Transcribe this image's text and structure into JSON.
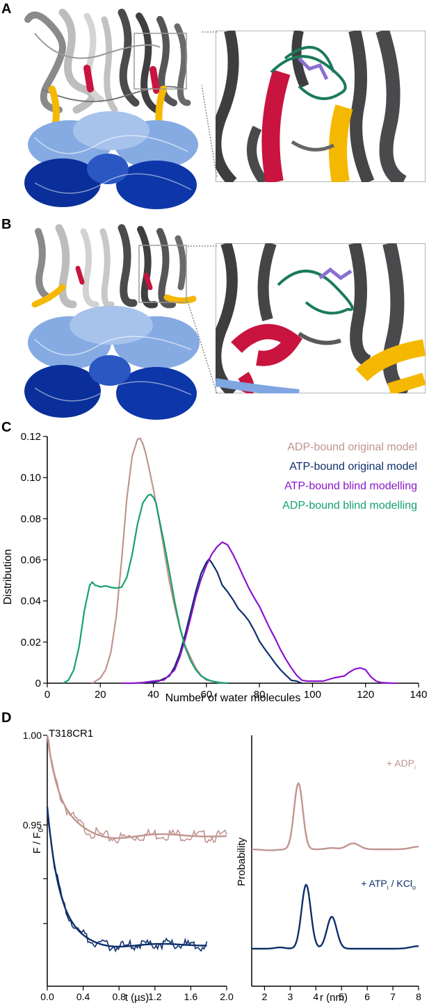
{
  "panels": {
    "a": {
      "letter": "A"
    },
    "b": {
      "letter": "B"
    },
    "c": {
      "letter": "C"
    },
    "d": {
      "letter": "D"
    }
  },
  "colors": {
    "dark_gray": "#4a4a4c",
    "light_gray": "#b8b8b8",
    "red": "#c8143e",
    "yellow": "#f5b800",
    "green": "#1b7a5a",
    "purple": "#8a6fd0",
    "light_blue": "#7fa6e0",
    "dark_blue": "#0a2f9a",
    "adp_rose": "#c0958f",
    "atp_navy": "#0d2f6b",
    "atp_blind_purple": "#8a14c9",
    "adp_blind_green": "#16a06e"
  },
  "chart_data": [
    {
      "type": "line",
      "xlabel": "Number of water molecules",
      "ylabel": "Distribution",
      "xlim": [
        0,
        140
      ],
      "ylim": [
        0,
        0.12
      ],
      "xticks": [
        0,
        20,
        40,
        60,
        80,
        100,
        120,
        140
      ],
      "yticks": [
        0,
        0.02,
        0.04,
        0.06,
        0.08,
        0.1,
        0.12
      ],
      "ytick_labels": [
        "0",
        "0.02",
        "0.04",
        "0.06",
        "0.08",
        "0.10",
        "0.12"
      ],
      "legend_position": "top-right",
      "series": [
        {
          "name": "ADP-bound original model",
          "color": "#c0958f",
          "x": [
            17,
            20,
            22,
            24,
            26,
            28,
            30,
            32,
            34,
            35,
            36,
            37,
            38,
            40,
            42,
            44,
            46,
            48,
            50,
            52,
            54,
            56,
            58,
            60,
            62,
            64,
            66
          ],
          "y": [
            0,
            0.002,
            0.006,
            0.015,
            0.033,
            0.06,
            0.09,
            0.11,
            0.118,
            0.119,
            0.117,
            0.113,
            0.107,
            0.094,
            0.08,
            0.065,
            0.05,
            0.038,
            0.027,
            0.018,
            0.012,
            0.007,
            0.004,
            0.002,
            0.001,
            0.0004,
            0
          ]
        },
        {
          "name": "ATP-bound original model",
          "color": "#0d2f6b",
          "x": [
            38,
            42,
            46,
            48,
            50,
            52,
            54,
            56,
            58,
            60,
            61,
            62,
            64,
            66,
            68,
            70,
            72,
            74,
            76,
            78,
            80,
            82,
            84,
            86,
            88,
            90,
            92,
            94,
            96
          ],
          "y": [
            0,
            0.001,
            0.004,
            0.008,
            0.014,
            0.023,
            0.034,
            0.045,
            0.054,
            0.059,
            0.06,
            0.058,
            0.054,
            0.048,
            0.045,
            0.041,
            0.036,
            0.033,
            0.03,
            0.026,
            0.021,
            0.017,
            0.013,
            0.009,
            0.006,
            0.004,
            0.002,
            0.001,
            0
          ]
        },
        {
          "name": "ATP-bound blind modelling",
          "color": "#8a14c9",
          "x": [
            28,
            32,
            36,
            40,
            44,
            48,
            50,
            52,
            54,
            56,
            58,
            60,
            62,
            64,
            66,
            68,
            70,
            72,
            74,
            76,
            78,
            80,
            82,
            84,
            86,
            88,
            90,
            92,
            94,
            96,
            98,
            100,
            104,
            108,
            110,
            112,
            114,
            116,
            118,
            120,
            122,
            124,
            126,
            130,
            132
          ],
          "y": [
            0,
            0,
            0.0003,
            0.001,
            0.002,
            0.007,
            0.013,
            0.021,
            0.031,
            0.042,
            0.051,
            0.058,
            0.063,
            0.066,
            0.068,
            0.067,
            0.063,
            0.058,
            0.052,
            0.046,
            0.041,
            0.037,
            0.032,
            0.027,
            0.022,
            0.016,
            0.011,
            0.007,
            0.004,
            0.002,
            0.001,
            0.001,
            0.001,
            0.002,
            0.003,
            0.004,
            0.006,
            0.007,
            0.007,
            0.006,
            0.003,
            0.001,
            0.0003,
            0,
            0
          ]
        },
        {
          "name": "ADP-bound blind modelling",
          "color": "#16a06e",
          "x": [
            6,
            8,
            10,
            12,
            14,
            16,
            17,
            18,
            19,
            20,
            22,
            24,
            26,
            28,
            30,
            32,
            34,
            36,
            38,
            39,
            40,
            41,
            42,
            44,
            46,
            48,
            50,
            52,
            54,
            56,
            58,
            60,
            62,
            64,
            66,
            68
          ],
          "y": [
            0,
            0.002,
            0.007,
            0.018,
            0.035,
            0.047,
            0.049,
            0.048,
            0.048,
            0.047,
            0.047,
            0.046,
            0.046,
            0.047,
            0.052,
            0.063,
            0.077,
            0.087,
            0.091,
            0.092,
            0.091,
            0.088,
            0.081,
            0.068,
            0.054,
            0.04,
            0.028,
            0.018,
            0.011,
            0.006,
            0.003,
            0.002,
            0.001,
            0.0005,
            0.0002,
            0
          ]
        }
      ]
    },
    {
      "type": "line",
      "title": "T318CR1",
      "xlabel": "t (µs)",
      "ylabel": "F / F",
      "ylabel_sub": "0",
      "xlim": [
        0,
        2.0
      ],
      "xticks": [
        0,
        0.4,
        0.8,
        1.2,
        1.6,
        2.0
      ],
      "xtick_labels": [
        "0.0",
        "0.4",
        "0.8",
        "1.2",
        "1.6",
        "2.0"
      ],
      "ytick_labels": [
        "1.00",
        "0.95"
      ],
      "series": [
        {
          "name": "+ ADPi",
          "color": "#c0958f",
          "t_max": 2.0,
          "start": 1.0,
          "plateau": 0.944,
          "tau": 0.14,
          "osc": 0.004,
          "noise": 0.0035
        },
        {
          "name": "+ ATPi / KClo",
          "color": "#0d2f6b",
          "t_max": 1.78,
          "start": 0.96,
          "plateau": 0.883,
          "tau": 0.14,
          "osc": 0.003,
          "noise": 0.003
        }
      ]
    },
    {
      "type": "line",
      "xlabel": "r (nm)",
      "ylabel": "Probability",
      "xlim": [
        1.5,
        8
      ],
      "xticks": [
        2,
        3,
        4,
        5,
        6,
        7,
        8
      ],
      "series": [
        {
          "name": "+ ADP",
          "subscript": "i",
          "color": "#c0958f",
          "label": "+ ADP",
          "label_sub": "i",
          "peaks": [
            {
              "r": 3.32,
              "h": 1.0,
              "w": 0.17
            },
            {
              "r": 5.45,
              "h": 0.09,
              "w": 0.25
            },
            {
              "r": 4.6,
              "h": 0.02,
              "w": 0.2
            }
          ],
          "baseline": 0.0
        },
        {
          "name": "+ ATP / KCl",
          "color": "#0d2f6b",
          "label_parts": [
            "+ ATP",
            "i",
            " / KCl",
            "o"
          ],
          "peaks": [
            {
              "r": 3.62,
              "h": 1.0,
              "w": 0.18
            },
            {
              "r": 4.62,
              "h": 0.5,
              "w": 0.19
            },
            {
              "r": 2.6,
              "h": 0.02,
              "w": 0.2
            }
          ],
          "baseline": 0.0
        }
      ]
    }
  ]
}
